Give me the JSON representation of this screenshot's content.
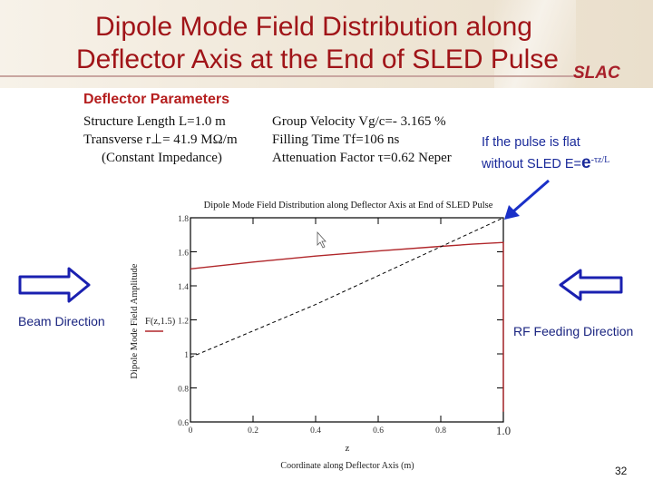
{
  "slide": {
    "title_line1": "Dipole Mode Field Distribution along",
    "title_line2": "Deflector Axis at the End of SLED Pulse",
    "logo": "SLAC",
    "page_number": "32",
    "colors": {
      "title": "#a01418",
      "annotation_blue": "#1a2a9a",
      "curve_red": "#b0262a"
    }
  },
  "params": {
    "heading": "Deflector Parameters",
    "left": [
      "Structure Length L=1.0 m",
      "Transverse r⊥= 41.9 MΩ/m",
      "(Constant Impedance)"
    ],
    "right": [
      "Group Velocity Vg/c=- 3.165 %",
      "Filling Time Tf=106 ns",
      "Attenuation Factor τ=0.62 Neper"
    ]
  },
  "annotation": {
    "line1": "If the pulse is flat",
    "line2_prefix": "without SLED E=",
    "e": "e",
    "exponent": "-τz/L"
  },
  "beam": {
    "label": "Beam Direction",
    "arrow": "right-arrow"
  },
  "rf": {
    "label": "RF Feeding Direction",
    "arrow": "left-arrow"
  },
  "chart_data": {
    "type": "line",
    "title": "Dipole Mode Field Distribution along Deflector Axis at End of SLED Pulse",
    "xlabel": "Coordinate along Deflector Axis (m)",
    "xvar": "z",
    "ylabel": "Dipole Mode Field Amplitude",
    "legend_label": "F(z,1.5)",
    "xlim": [
      0,
      1.0
    ],
    "ylim": [
      0.6,
      1.8
    ],
    "x_ticks": [
      "0",
      "0.2",
      "0.4",
      "0.6",
      "0.8",
      "1.0"
    ],
    "y_ticks": [
      "0.6",
      "0.8",
      "1",
      "1.2",
      "1.4",
      "1.6",
      "1.8"
    ],
    "grid": false,
    "series": [
      {
        "name": "F(z,1.5) with SLED",
        "style": "solid-red",
        "x": [
          0,
          0.2,
          0.4,
          0.6,
          0.8,
          0.9,
          1.0,
          1.0
        ],
        "y": [
          1.5,
          1.54,
          1.575,
          1.605,
          1.632,
          1.645,
          1.655,
          0.66
        ]
      },
      {
        "name": "flat pulse without SLED E=e^(-τz/L)",
        "style": "dashed-black",
        "x": [
          0,
          0.2,
          0.4,
          0.6,
          0.8,
          1.0
        ],
        "y": [
          0.98,
          1.135,
          1.29,
          1.46,
          1.63,
          1.8
        ]
      }
    ]
  }
}
